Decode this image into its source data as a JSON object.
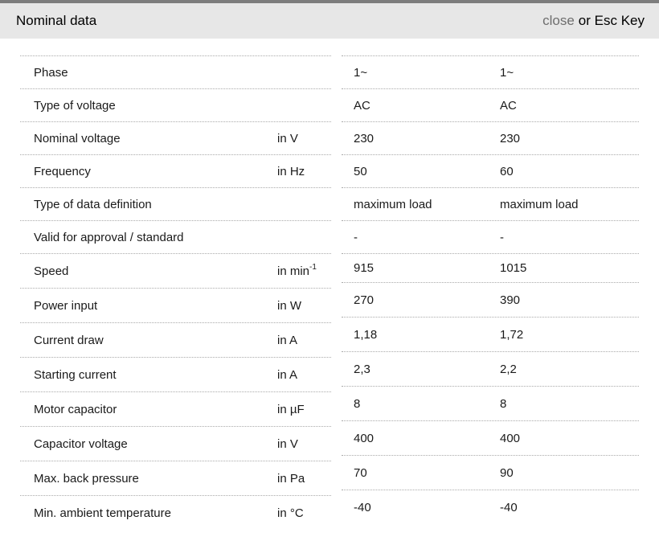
{
  "header": {
    "title": "Nominal data",
    "close_label": "close",
    "esc_hint": "or Esc Key"
  },
  "table": {
    "rows": [
      {
        "label": "Phase",
        "unit": "",
        "values": [
          "1~",
          "1~"
        ]
      },
      {
        "label": "Type of voltage",
        "unit": "",
        "values": [
          "AC",
          "AC"
        ]
      },
      {
        "label": "Nominal voltage",
        "unit": "in V",
        "values": [
          "230",
          "230"
        ]
      },
      {
        "label": "Frequency",
        "unit": "in Hz",
        "values": [
          "50",
          "60"
        ]
      },
      {
        "label": "Type of data definition",
        "unit": "",
        "values": [
          "maximum load",
          "maximum load"
        ]
      },
      {
        "label": "Valid for approval / standard",
        "unit": "",
        "values": [
          "-",
          "-"
        ]
      },
      {
        "label": "Speed",
        "unit": "in min",
        "unit_sup": "-1",
        "values": [
          "915",
          "1015"
        ]
      },
      {
        "label": "Power input",
        "unit": "in W",
        "values": [
          "270",
          "390"
        ]
      },
      {
        "label": "Current draw",
        "unit": "in A",
        "values": [
          "1,18",
          "1,72"
        ]
      },
      {
        "label": "Starting current",
        "unit": "in A",
        "values": [
          "2,3",
          "2,2"
        ]
      },
      {
        "label": "Motor capacitor",
        "unit": "in µF",
        "values": [
          "8",
          "8"
        ]
      },
      {
        "label": "Capacitor voltage",
        "unit": "in V",
        "values": [
          "400",
          "400"
        ]
      },
      {
        "label": "Max. back pressure",
        "unit": "in Pa",
        "values": [
          "70",
          "90"
        ]
      },
      {
        "label": "Min. ambient temperature",
        "unit": "in °C",
        "values": [
          "-40",
          "-40"
        ]
      }
    ]
  },
  "colors": {
    "top_strip": "#7d7d7d",
    "header_background": "#e7e7e7",
    "title_text": "#000000",
    "close_link": "#6e6e6e",
    "body_text": "#1a1a1a",
    "dotted_separator": "#aaaaaa",
    "page_background": "#ffffff"
  }
}
